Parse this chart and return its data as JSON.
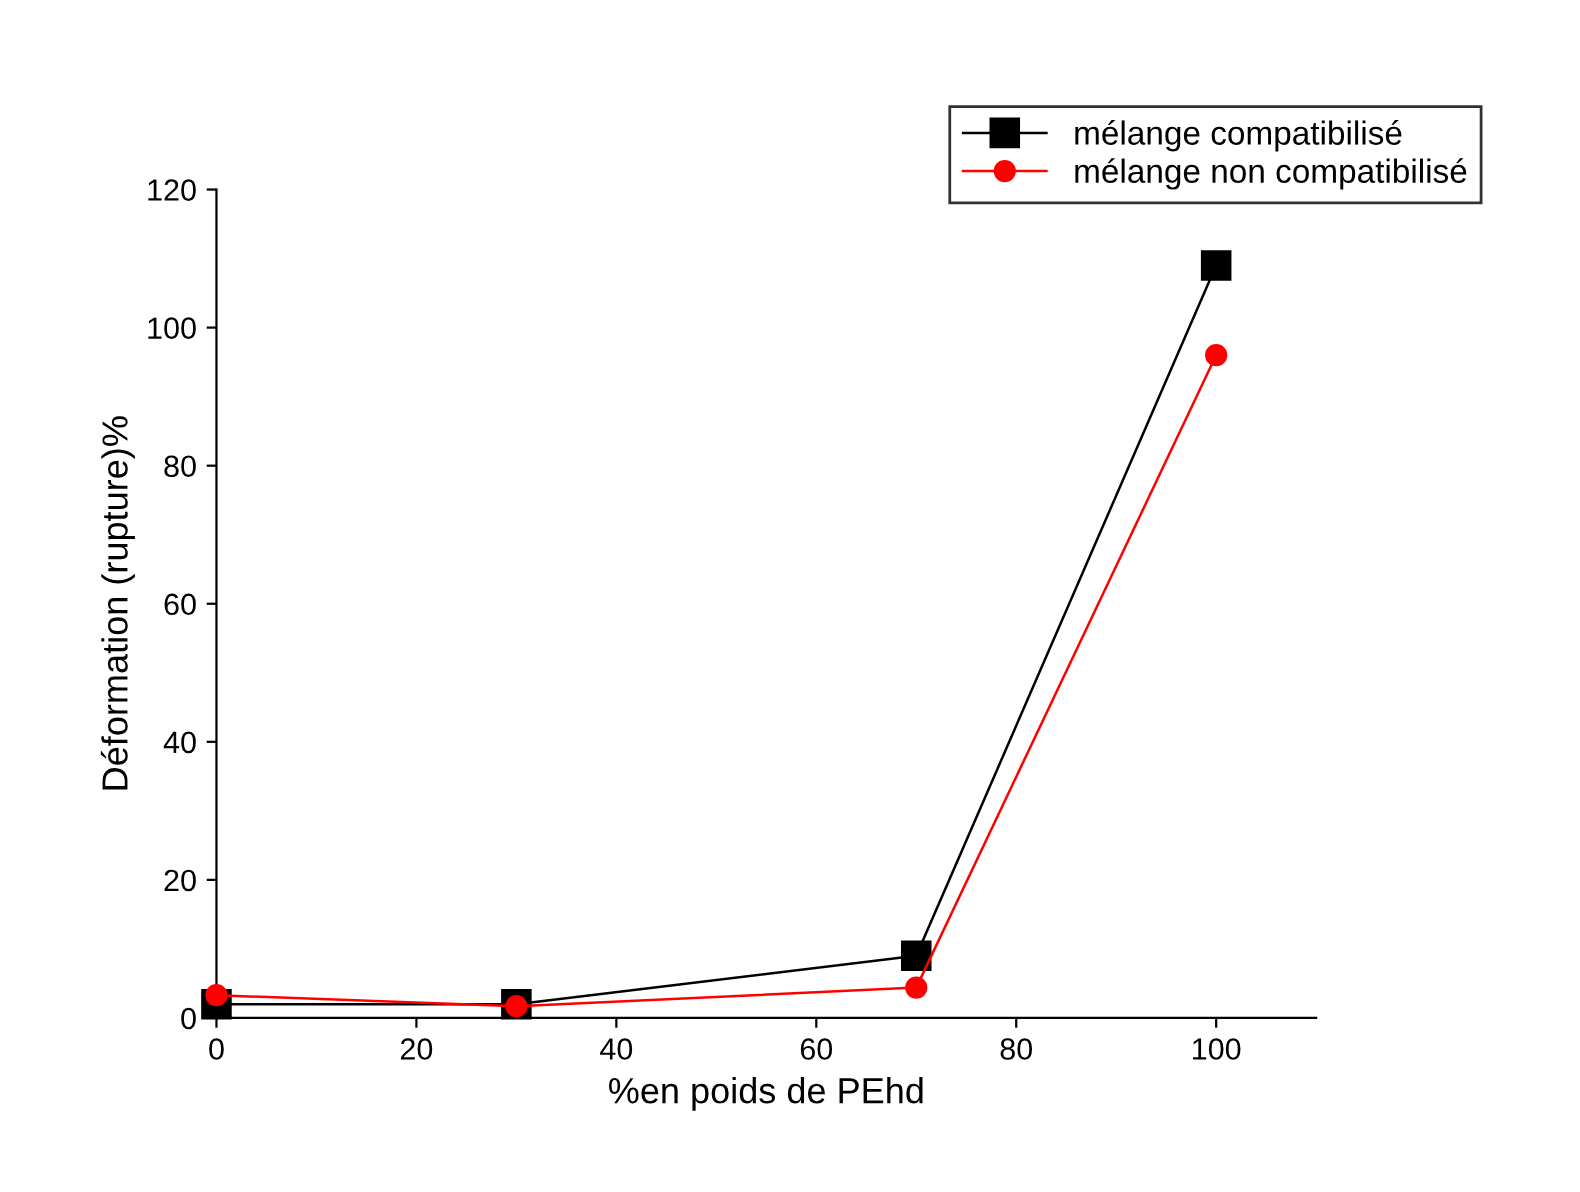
{
  "chart_data": {
    "type": "line",
    "xlabel": "%en poids de PEhd",
    "ylabel": "Déformation (rupture)%",
    "x": [
      0,
      30,
      70,
      100
    ],
    "series": [
      {
        "name": "mélange compatibilisé",
        "color": "#000000",
        "marker": "square",
        "values": [
          2,
          2,
          9,
          109
        ]
      },
      {
        "name": "mélange non compatibilisé",
        "color": "#ff0000",
        "marker": "circle",
        "values": [
          3.3,
          1.7,
          4.4,
          96
        ]
      }
    ],
    "xlim": [
      0,
      110
    ],
    "ylim": [
      0,
      120
    ],
    "xticks": [
      0,
      20,
      40,
      60,
      80,
      100
    ],
    "yticks": [
      0,
      20,
      40,
      60,
      80,
      100,
      120
    ],
    "grid": false,
    "legend": "top right"
  }
}
